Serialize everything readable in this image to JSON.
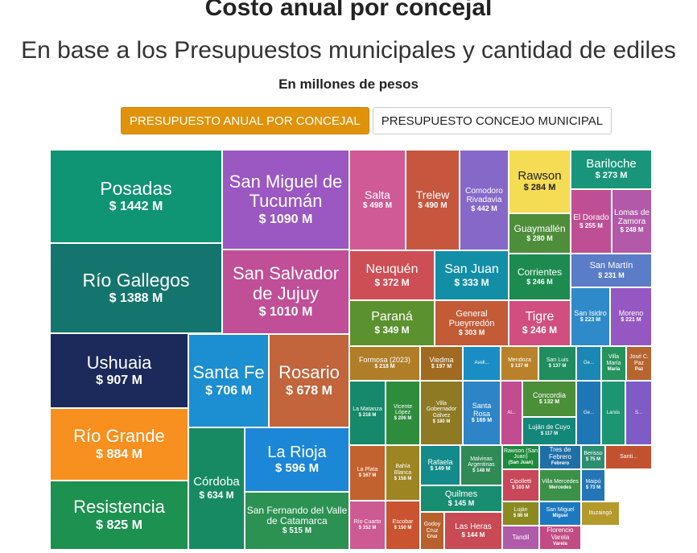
{
  "page": {
    "title": "Costo anual por concejal",
    "subtitle": "En base a los Presupuestos municipales y cantidad de ediles",
    "unit_label": "En millones de pesos"
  },
  "tabs": [
    {
      "label": "PRESUPUESTO ANUAL POR CONCEJAL",
      "active": true
    },
    {
      "label": "PRESUPUESTO CONCEJO MUNICIPAL",
      "active": false
    }
  ],
  "chart_data": {
    "type": "treemap",
    "title": "Costo anual por concejal",
    "subtitle": "En base a los Presupuestos municipales y cantidad de ediles",
    "unit": "En millones de pesos",
    "items": [
      {
        "name": "Posadas",
        "value": 1442,
        "label": "$ 1442 M",
        "color": "#0f9474"
      },
      {
        "name": "Río Gallegos",
        "value": 1388,
        "label": "$ 1388 M",
        "color": "#14756e"
      },
      {
        "name": "Ushuaia",
        "value": 907,
        "label": "$ 907 M",
        "color": "#1b2a5a"
      },
      {
        "name": "Río Grande",
        "value": 884,
        "label": "$ 884 M",
        "color": "#f7901e"
      },
      {
        "name": "Resistencia",
        "value": 825,
        "label": "$ 825 M",
        "color": "#1d9150"
      },
      {
        "name": "San Miguel de Tucumán",
        "value": 1090,
        "label": "$ 1090 M",
        "color": "#9b57c2"
      },
      {
        "name": "San Salvador de Jujuy",
        "value": 1010,
        "label": "$ 1010 M",
        "color": "#c04f97"
      },
      {
        "name": "Santa Fe",
        "value": 706,
        "label": "$ 706 M",
        "color": "#1b8fd1"
      },
      {
        "name": "Rosario",
        "value": 678,
        "label": "$ 678 M",
        "color": "#c2643c"
      },
      {
        "name": "Córdoba",
        "value": 634,
        "label": "$ 634 M",
        "color": "#178a64"
      },
      {
        "name": "La Rioja",
        "value": 596,
        "label": "$ 596 M",
        "color": "#1c87d7"
      },
      {
        "name": "San Fernando del Valle de Catamarca",
        "value": 515,
        "label": "$ 515 M",
        "color": "#2c9253"
      },
      {
        "name": "Salta",
        "value": 498,
        "label": "$ 498 M",
        "color": "#cf5a95"
      },
      {
        "name": "Trelew",
        "value": 490,
        "label": "$ 490 M",
        "color": "#c7563f"
      },
      {
        "name": "Comodoro Rivadavia",
        "value": 442,
        "label": "$ 442 M",
        "color": "#8668c9"
      },
      {
        "name": "Rawson",
        "value": 284,
        "label": "$ 284 M",
        "color": "#f5dc55"
      },
      {
        "name": "Bariloche",
        "value": 273,
        "label": "$ 273 M",
        "color": "#18957a"
      },
      {
        "name": "Guaymallén",
        "value": 280,
        "label": "$ 280 M",
        "color": "#4e8d3a"
      },
      {
        "name": "El Dorado",
        "value": 255,
        "label": "$ 255 M",
        "color": "#bf4f94"
      },
      {
        "name": "Lomas de Zamora",
        "value": 248,
        "label": "$ 248 M",
        "color": "#b25aa9"
      },
      {
        "name": "Neuquén",
        "value": 372,
        "label": "$ 372 M",
        "color": "#cd4f55"
      },
      {
        "name": "San Juan",
        "value": 333,
        "label": "$ 333 M",
        "color": "#128fa6"
      },
      {
        "name": "Corrientes",
        "value": 246,
        "label": "$ 246 M",
        "color": "#1d8b50"
      },
      {
        "name": "San Martín",
        "value": 231,
        "label": "$ 231 M",
        "color": "#5b7cc7"
      },
      {
        "name": "Paraná",
        "value": 349,
        "label": "$ 349 M",
        "color": "#5b912e"
      },
      {
        "name": "General Pueyrredón",
        "value": 303,
        "label": "$ 303 M",
        "color": "#c35b36"
      },
      {
        "name": "Tigre",
        "value": 246,
        "label": "$ 246 M",
        "color": "#d04f80"
      },
      {
        "name": "San Isidro",
        "value": 223,
        "label": "$ 223 M",
        "color": "#2f8ac9"
      },
      {
        "name": "Moreno",
        "value": 221,
        "label": "$ 221 M",
        "color": "#9558c2"
      },
      {
        "name": "Formosa (2023)",
        "value": 218,
        "label": "$ 218 M",
        "color": "#b07e28"
      },
      {
        "name": "Viedma",
        "value": 197,
        "label": "$ 197 M",
        "color": "#a06a20"
      },
      {
        "name": "Avell...",
        "value": null,
        "label": "",
        "color": "#1a8ec4"
      },
      {
        "name": "Mendoza",
        "value": 137,
        "label": "$ 137 M",
        "color": "#b9822a"
      },
      {
        "name": "San Luis",
        "value": 137,
        "label": "$ 137 M",
        "color": "#1f8d5e"
      },
      {
        "name": "Ge...",
        "value": null,
        "label": "",
        "color": "#1a87b4"
      },
      {
        "name": "Villa María",
        "value": null,
        "label": "María",
        "color": "#26935e"
      },
      {
        "name": "José C. Paz",
        "value": null,
        "label": "Paz",
        "color": "#b7652f"
      },
      {
        "name": "La Matanza",
        "value": 218,
        "label": "$ 218 M",
        "color": "#15896a"
      },
      {
        "name": "Vicente López",
        "value": 206,
        "label": "$ 206 M",
        "color": "#2e8d3d"
      },
      {
        "name": "Villa Gobernador Gálvez",
        "value": 180,
        "label": "$ 180 M",
        "color": "#8d7a23"
      },
      {
        "name": "Santa Rosa",
        "value": 169,
        "label": "$ 169 M",
        "color": "#2d84c6"
      },
      {
        "name": "Al...",
        "value": null,
        "label": "",
        "color": "#c24c91"
      },
      {
        "name": "Concordia",
        "value": 132,
        "label": "$ 132 M",
        "color": "#4b8f39"
      },
      {
        "name": "Luján de Cuyo",
        "value": 117,
        "label": "$ 117 M",
        "color": "#13877a"
      },
      {
        "name": "Ge...",
        "value": null,
        "label": "",
        "color": "#1f76b4"
      },
      {
        "name": "Lanús",
        "value": null,
        "label": "",
        "color": "#1c9572"
      },
      {
        "name": "S...",
        "value": null,
        "label": "",
        "color": "#7e5bc5"
      },
      {
        "name": "La Plata",
        "value": 167,
        "label": "$ 167 M",
        "color": "#c2622f"
      },
      {
        "name": "Bahía Blanca",
        "value": 158,
        "label": "$ 158 M",
        "color": "#9d8522"
      },
      {
        "name": "Rafaela",
        "value": 149,
        "label": "$ 149 M",
        "color": "#138b8a"
      },
      {
        "name": "Malvinas Argentinas",
        "value": 148,
        "label": "$ 148 M",
        "color": "#2f8a56"
      },
      {
        "name": "Rawson (San Juan)",
        "value": null,
        "label": "(San Juan)",
        "color": "#1f8a3c"
      },
      {
        "name": "Tres de Febrero",
        "value": null,
        "label": "Febrero",
        "color": "#1f6fa6"
      },
      {
        "name": "Berisso",
        "value": 75,
        "label": "$ 75 M",
        "color": "#2c8e70"
      },
      {
        "name": "Santi...",
        "value": null,
        "label": "",
        "color": "#c2522f"
      },
      {
        "name": "Cipolletti",
        "value": 103,
        "label": "$ 103 M",
        "color": "#c84859"
      },
      {
        "name": "Villa Mercedes",
        "value": null,
        "label": "Mercedes",
        "color": "#3b9148"
      },
      {
        "name": "Maipú",
        "value": 73,
        "label": "$ 73 M",
        "color": "#2275b6"
      },
      {
        "name": "Quilmes",
        "value": 145,
        "label": "$ 145 M",
        "color": "#188d6f"
      },
      {
        "name": "Río Cuarto",
        "value": 152,
        "label": "$ 152 M",
        "color": "#ce5a93"
      },
      {
        "name": "Escobar",
        "value": 150,
        "label": "$ 150 M",
        "color": "#c9542f"
      },
      {
        "name": "Godoy Cruz",
        "value": null,
        "label": "Cruz",
        "color": "#b8612d"
      },
      {
        "name": "Las Heras",
        "value": 144,
        "label": "$ 144 M",
        "color": "#c84a55"
      },
      {
        "name": "Luján",
        "value": 86,
        "label": "$ 86 M",
        "color": "#8a8a20"
      },
      {
        "name": "San Miguel",
        "value": null,
        "label": "Miguel",
        "color": "#1e78c0"
      },
      {
        "name": "Ituzaingó",
        "value": null,
        "label": "",
        "color": "#b49a2a"
      },
      {
        "name": "Tandil",
        "value": null,
        "label": "",
        "color": "#b15aaa"
      },
      {
        "name": "Florencio Varela",
        "value": null,
        "label": "Varela",
        "color": "#c24b84"
      }
    ]
  }
}
